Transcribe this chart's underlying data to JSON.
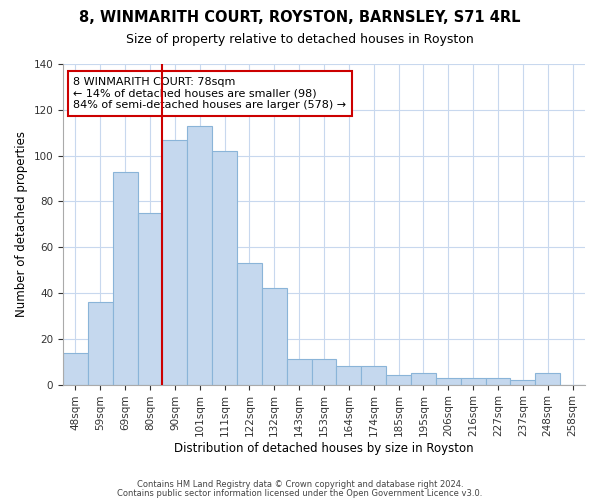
{
  "title": "8, WINMARITH COURT, ROYSTON, BARNSLEY, S71 4RL",
  "subtitle": "Size of property relative to detached houses in Royston",
  "xlabel": "Distribution of detached houses by size in Royston",
  "ylabel": "Number of detached properties",
  "bar_labels": [
    "48sqm",
    "59sqm",
    "69sqm",
    "80sqm",
    "90sqm",
    "101sqm",
    "111sqm",
    "122sqm",
    "132sqm",
    "143sqm",
    "153sqm",
    "164sqm",
    "174sqm",
    "185sqm",
    "195sqm",
    "206sqm",
    "216sqm",
    "227sqm",
    "237sqm",
    "248sqm",
    "258sqm"
  ],
  "bar_values": [
    14,
    36,
    93,
    75,
    107,
    113,
    102,
    53,
    42,
    11,
    11,
    8,
    8,
    4,
    5,
    3,
    3,
    3,
    2,
    5,
    0
  ],
  "bar_color": "#c5d8ee",
  "bar_edge_color": "#8ab4d8",
  "vline_x_index": 3,
  "vline_color": "#cc0000",
  "annotation_title": "8 WINMARITH COURT: 78sqm",
  "annotation_line1": "← 14% of detached houses are smaller (98)",
  "annotation_line2": "84% of semi-detached houses are larger (578) →",
  "annotation_box_color": "#ffffff",
  "annotation_box_edge": "#cc0000",
  "ylim": [
    0,
    140
  ],
  "yticks": [
    0,
    20,
    40,
    60,
    80,
    100,
    120,
    140
  ],
  "footer1": "Contains HM Land Registry data © Crown copyright and database right 2024.",
  "footer2": "Contains public sector information licensed under the Open Government Licence v3.0.",
  "background_color": "#ffffff",
  "grid_color": "#c8d8ee"
}
